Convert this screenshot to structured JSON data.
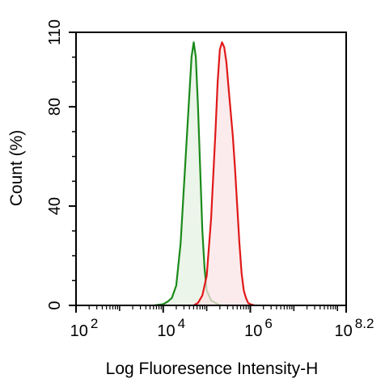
{
  "chart_data": {
    "type": "area",
    "xlabel": "Log Fluoresence Intensity-H",
    "ylabel": "Count  (%)",
    "x_scale": "log",
    "xlim": [
      100,
      158489319
    ],
    "ylim": [
      0,
      110
    ],
    "x_ticks": [
      {
        "value": 100,
        "base": "10",
        "exp": "2"
      },
      {
        "value": 10000,
        "base": "10",
        "exp": "4"
      },
      {
        "value": 1000000,
        "base": "10",
        "exp": "6"
      },
      {
        "value": 158489319,
        "base": "10",
        "exp": "8.2"
      }
    ],
    "y_ticks": [
      {
        "value": 0,
        "label": "0"
      },
      {
        "value": 40,
        "label": "40"
      },
      {
        "value": 80,
        "label": "80"
      },
      {
        "value": 110,
        "label": "110"
      }
    ],
    "grid": false,
    "series": [
      {
        "color": "#1a8a1a",
        "fill": "#e6f2e2",
        "points": [
          [
            6310,
            0
          ],
          [
            10000,
            0.5
          ],
          [
            12589,
            1.5
          ],
          [
            15849,
            3
          ],
          [
            19953,
            8
          ],
          [
            25119,
            25
          ],
          [
            31623,
            55
          ],
          [
            35481,
            70
          ],
          [
            39811,
            85
          ],
          [
            44668,
            100
          ],
          [
            50119,
            106
          ],
          [
            56234,
            100
          ],
          [
            63096,
            80
          ],
          [
            70795,
            55
          ],
          [
            79433,
            30
          ],
          [
            89125,
            15
          ],
          [
            100000,
            6
          ],
          [
            125893,
            2
          ],
          [
            158489,
            1
          ],
          [
            199526,
            0
          ]
        ]
      },
      {
        "color": "#e01818",
        "fill": "#fbe4e6",
        "points": [
          [
            50119,
            0
          ],
          [
            63096,
            1
          ],
          [
            79433,
            4
          ],
          [
            100000,
            12
          ],
          [
            125893,
            35
          ],
          [
            158489,
            70
          ],
          [
            177828,
            90
          ],
          [
            199526,
            103
          ],
          [
            223872,
            106
          ],
          [
            251189,
            104
          ],
          [
            281838,
            98
          ],
          [
            316228,
            88
          ],
          [
            354813,
            78
          ],
          [
            398107,
            68
          ],
          [
            446684,
            55
          ],
          [
            501187,
            40
          ],
          [
            562341,
            25
          ],
          [
            630957,
            13
          ],
          [
            707946,
            6
          ],
          [
            794328,
            3
          ],
          [
            891251,
            1
          ],
          [
            1000000,
            0.5
          ],
          [
            1258925,
            0
          ]
        ]
      }
    ]
  }
}
